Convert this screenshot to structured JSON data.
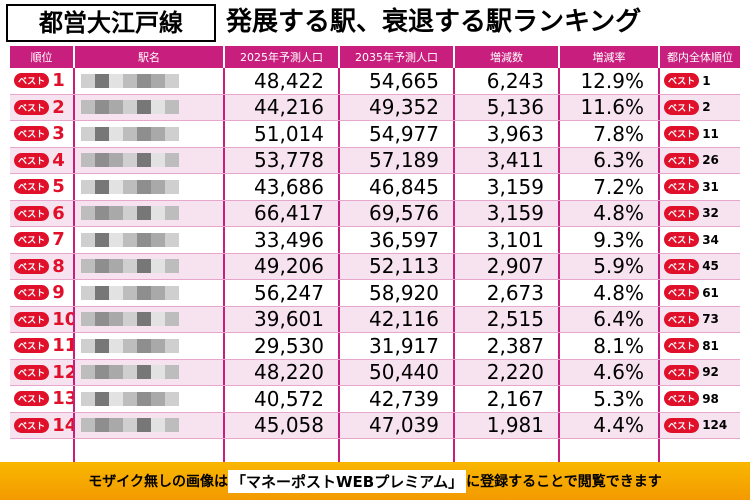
{
  "header": {
    "line_name": "都営大江戸線",
    "title": "発展する駅、衰退する駅ランキング"
  },
  "table": {
    "columns": [
      "順位",
      "駅名",
      "2025年予測人口",
      "2035年予測人口",
      "増減数",
      "増減率",
      "都内全体順位"
    ],
    "badge": "ベスト",
    "rows": [
      [
        "1",
        "48,422",
        "54,665",
        "6,243",
        "12.9%",
        "1"
      ],
      [
        "2",
        "44,216",
        "49,352",
        "5,136",
        "11.6%",
        "2"
      ],
      [
        "3",
        "51,014",
        "54,977",
        "3,963",
        "7.8%",
        "11"
      ],
      [
        "4",
        "53,778",
        "57,189",
        "3,411",
        "6.3%",
        "26"
      ],
      [
        "5",
        "43,686",
        "46,845",
        "3,159",
        "7.2%",
        "31"
      ],
      [
        "6",
        "66,417",
        "69,576",
        "3,159",
        "4.8%",
        "32"
      ],
      [
        "7",
        "33,496",
        "36,597",
        "3,101",
        "9.3%",
        "34"
      ],
      [
        "8",
        "49,206",
        "52,113",
        "2,907",
        "5.9%",
        "45"
      ],
      [
        "9",
        "56,247",
        "58,920",
        "2,673",
        "4.8%",
        "61"
      ],
      [
        "10",
        "39,601",
        "42,116",
        "2,515",
        "6.4%",
        "73"
      ],
      [
        "11",
        "29,530",
        "31,917",
        "2,387",
        "8.1%",
        "81"
      ],
      [
        "12",
        "48,220",
        "50,440",
        "2,220",
        "4.6%",
        "92"
      ],
      [
        "13",
        "40,572",
        "42,739",
        "2,167",
        "5.3%",
        "98"
      ],
      [
        "14",
        "45,058",
        "47,039",
        "1,981",
        "4.4%",
        "124"
      ]
    ]
  },
  "footer": {
    "prefix": "モザイク無しの画像は",
    "highlight": "「マネーポストWEBプレミアム」",
    "suffix": "に登録することで閲覧できます"
  }
}
